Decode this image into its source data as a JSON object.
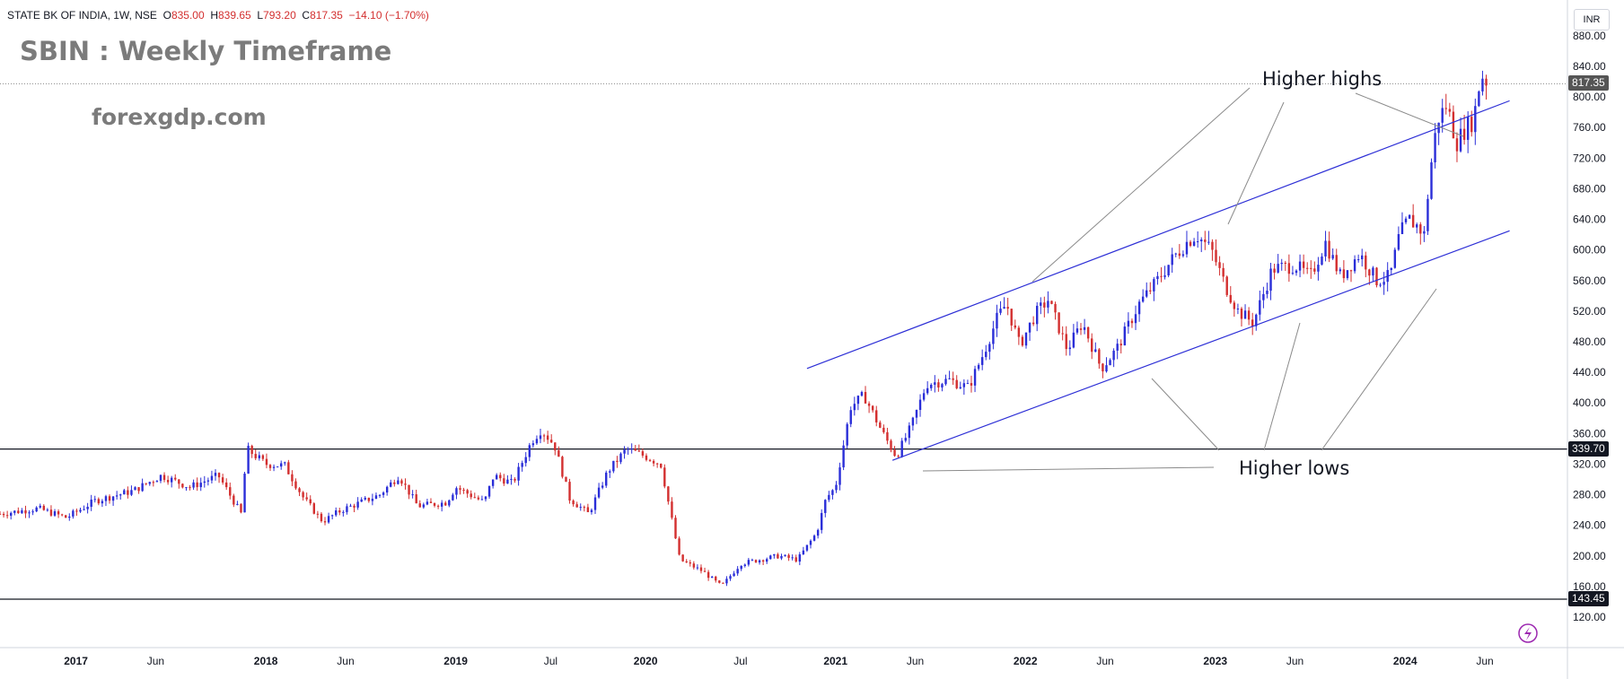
{
  "header": {
    "symbol": "STATE BK OF INDIA, 1W, NSE",
    "open_label": "O",
    "open": "835.00",
    "high_label": "H",
    "high": "839.65",
    "low_label": "L",
    "low": "793.20",
    "close_label": "C",
    "close": "817.35",
    "change": "−14.10 (−1.70%)"
  },
  "overlay": {
    "title": "SBIN : Weekly Timeframe",
    "site": "forexgdp.com",
    "currency": "INR"
  },
  "annotations": {
    "higher_highs": "Higher highs",
    "higher_lows": "Higher lows"
  },
  "price_tags": {
    "last": "817.35",
    "resistance": "339.70",
    "support": "143.45"
  },
  "colors": {
    "up": "#2a2ed8",
    "down": "#d32f2f",
    "channel": "#2d2fd6",
    "level": "#131722",
    "pointer": "#8a8a8a",
    "last_tag": "#555555",
    "level_tag": "#131722"
  },
  "chart_data": {
    "type": "candlestick",
    "title": "SBIN : Weekly Timeframe",
    "timeframe": "1W",
    "ylim": [
      100,
      880
    ],
    "y_ticks": [
      120,
      160,
      200,
      240,
      280,
      320,
      360,
      400,
      440,
      480,
      520,
      560,
      600,
      640,
      680,
      720,
      760,
      800,
      840,
      880
    ],
    "x_ticks": [
      {
        "label": "2017",
        "t": 2017.0
      },
      {
        "label": "Jun",
        "t": 2017.42
      },
      {
        "label": "2018",
        "t": 2018.0
      },
      {
        "label": "Jun",
        "t": 2018.42
      },
      {
        "label": "2019",
        "t": 2019.0
      },
      {
        "label": "Jul",
        "t": 2019.5
      },
      {
        "label": "2020",
        "t": 2020.0
      },
      {
        "label": "Jul",
        "t": 2020.5
      },
      {
        "label": "2021",
        "t": 2021.0
      },
      {
        "label": "Jun",
        "t": 2021.42
      },
      {
        "label": "2022",
        "t": 2022.0
      },
      {
        "label": "Jun",
        "t": 2022.42
      },
      {
        "label": "2023",
        "t": 2023.0
      },
      {
        "label": "Jun",
        "t": 2023.42
      },
      {
        "label": "2024",
        "t": 2024.0
      },
      {
        "label": "Jun",
        "t": 2024.42
      }
    ],
    "horizontal_levels": [
      339.7,
      143.45
    ],
    "last_price": 817.35,
    "price_path": [
      [
        2016.6,
        255
      ],
      [
        2016.8,
        262
      ],
      [
        2016.95,
        250
      ],
      [
        2017.1,
        272
      ],
      [
        2017.3,
        285
      ],
      [
        2017.45,
        305
      ],
      [
        2017.6,
        290
      ],
      [
        2017.75,
        305
      ],
      [
        2017.87,
        255
      ],
      [
        2017.9,
        340
      ],
      [
        2018.0,
        320
      ],
      [
        2018.1,
        318
      ],
      [
        2018.2,
        275
      ],
      [
        2018.3,
        245
      ],
      [
        2018.4,
        260
      ],
      [
        2018.6,
        280
      ],
      [
        2018.7,
        305
      ],
      [
        2018.8,
        265
      ],
      [
        2018.95,
        270
      ],
      [
        2019.0,
        290
      ],
      [
        2019.15,
        270
      ],
      [
        2019.2,
        305
      ],
      [
        2019.3,
        295
      ],
      [
        2019.4,
        350
      ],
      [
        2019.45,
        365
      ],
      [
        2019.52,
        345
      ],
      [
        2019.6,
        275
      ],
      [
        2019.7,
        255
      ],
      [
        2019.8,
        310
      ],
      [
        2019.9,
        340
      ],
      [
        2020.0,
        330
      ],
      [
        2020.08,
        320
      ],
      [
        2020.18,
        195
      ],
      [
        2020.3,
        180
      ],
      [
        2020.4,
        160
      ],
      [
        2020.5,
        190
      ],
      [
        2020.6,
        195
      ],
      [
        2020.7,
        200
      ],
      [
        2020.8,
        195
      ],
      [
        2020.9,
        230
      ],
      [
        2020.95,
        275
      ],
      [
        2021.0,
        290
      ],
      [
        2021.08,
        395
      ],
      [
        2021.15,
        410
      ],
      [
        2021.25,
        360
      ],
      [
        2021.32,
        330
      ],
      [
        2021.4,
        370
      ],
      [
        2021.48,
        425
      ],
      [
        2021.6,
        430
      ],
      [
        2021.7,
        420
      ],
      [
        2021.78,
        465
      ],
      [
        2021.85,
        510
      ],
      [
        2021.9,
        530
      ],
      [
        2021.97,
        475
      ],
      [
        2022.05,
        515
      ],
      [
        2022.12,
        535
      ],
      [
        2022.22,
        470
      ],
      [
        2022.3,
        505
      ],
      [
        2022.4,
        445
      ],
      [
        2022.48,
        470
      ],
      [
        2022.6,
        530
      ],
      [
        2022.68,
        555
      ],
      [
        2022.78,
        590
      ],
      [
        2022.85,
        610
      ],
      [
        2022.9,
        620
      ],
      [
        2022.98,
        600
      ],
      [
        2023.05,
        555
      ],
      [
        2023.12,
        520
      ],
      [
        2023.2,
        505
      ],
      [
        2023.3,
        575
      ],
      [
        2023.42,
        580
      ],
      [
        2023.5,
        565
      ],
      [
        2023.58,
        610
      ],
      [
        2023.66,
        565
      ],
      [
        2023.76,
        595
      ],
      [
        2023.85,
        560
      ],
      [
        2023.92,
        565
      ],
      [
        2023.97,
        620
      ],
      [
        2024.02,
        640
      ],
      [
        2024.07,
        630
      ],
      [
        2024.1,
        620
      ],
      [
        2024.13,
        700
      ],
      [
        2024.17,
        770
      ],
      [
        2024.22,
        790
      ],
      [
        2024.27,
        740
      ],
      [
        2024.32,
        760
      ],
      [
        2024.36,
        770
      ],
      [
        2024.4,
        830
      ],
      [
        2024.44,
        817.35
      ]
    ],
    "channel_upper": [
      [
        2020.85,
        445
      ],
      [
        2024.55,
        795
      ]
    ],
    "channel_lower": [
      [
        2021.3,
        325
      ],
      [
        2024.55,
        625
      ]
    ],
    "annotations": [
      "Higher highs",
      "Higher lows"
    ]
  }
}
